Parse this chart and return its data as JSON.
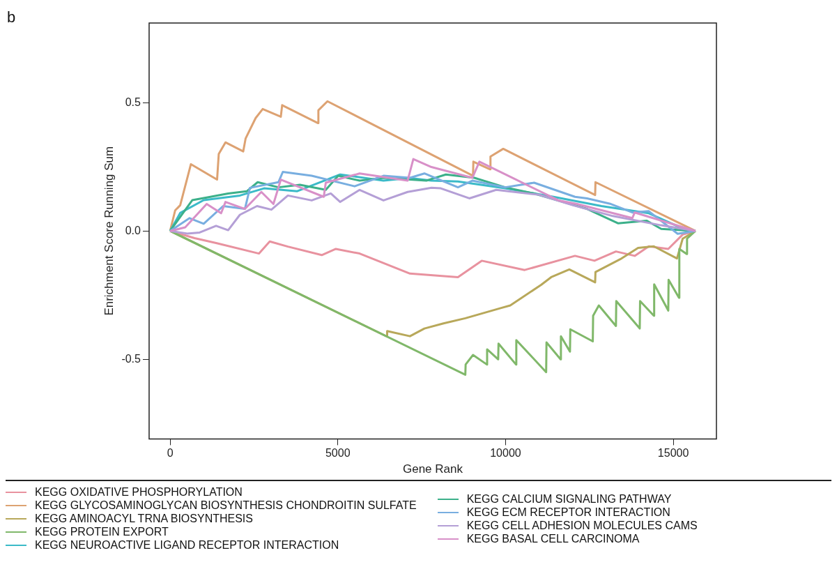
{
  "chart_data": {
    "type": "line",
    "xlabel": "Gene Rank",
    "ylabel": "Enrichment Score Running Sum",
    "annotations": [
      "b"
    ],
    "xlim": [
      -626,
      16286
    ],
    "ylim": [
      -0.81,
      0.81
    ],
    "xticks": [
      0,
      5000,
      10000,
      15000
    ],
    "yticks": [
      -0.5,
      {
        "value": 0,
        "label": "0.0"
      },
      0.5
    ],
    "grid": false,
    "legend": "bottom",
    "marker": "none",
    "line_style": "solid",
    "series": [
      {
        "name": "KEGG OXIDATIVE PHOSPHORYLATION",
        "color": "#e8929f",
        "x": [
          0,
          730,
          1370,
          2650,
          2970,
          3510,
          4520,
          4940,
          5650,
          7150,
          8580,
          9290,
          10570,
          12070,
          12650,
          13290,
          13850,
          14270,
          14850,
          15280,
          15660
        ],
        "values": [
          0,
          -0.028,
          -0.047,
          -0.088,
          -0.041,
          -0.061,
          -0.094,
          -0.07,
          -0.088,
          -0.166,
          -0.18,
          -0.116,
          -0.152,
          -0.097,
          -0.116,
          -0.08,
          -0.097,
          -0.06,
          -0.07,
          -0.014,
          0
        ]
      },
      {
        "name": "KEGG GLYCOSAMINOGLYCAN BIOSYNTHESIS CHONDROITIN SULFATE",
        "color": "#dda272",
        "x": [
          0,
          150,
          300,
          620,
          1400,
          1450,
          1650,
          2180,
          2250,
          2550,
          2760,
          3300,
          3340,
          4410,
          4420,
          4690,
          9030,
          9040,
          9540,
          9550,
          9930,
          12670,
          12680,
          15660
        ],
        "values": [
          0,
          0.08,
          0.1,
          0.26,
          0.2,
          0.3,
          0.345,
          0.31,
          0.36,
          0.44,
          0.475,
          0.445,
          0.49,
          0.42,
          0.47,
          0.505,
          0.215,
          0.27,
          0.24,
          0.29,
          0.32,
          0.14,
          0.19,
          0
        ]
      },
      {
        "name": "KEGG AMINOACYL TRNA BIOSYNTHESIS",
        "color": "#b8a85a",
        "x": [
          0,
          6460,
          6470,
          7150,
          7580,
          8150,
          8800,
          9870,
          10140,
          11060,
          11360,
          11900,
          12670,
          12680,
          13420,
          13950,
          14420,
          15110,
          15280,
          15660
        ],
        "values": [
          0,
          -0.411,
          -0.39,
          -0.41,
          -0.38,
          -0.36,
          -0.34,
          -0.3,
          -0.29,
          -0.21,
          -0.18,
          -0.15,
          -0.2,
          -0.16,
          -0.11,
          -0.066,
          -0.06,
          -0.107,
          -0.03,
          0
        ]
      },
      {
        "name": "KEGG PROTEIN EXPORT",
        "color": "#80b86a",
        "x": [
          0,
          8800,
          8810,
          9030,
          9440,
          9450,
          9780,
          9790,
          10310,
          10320,
          11210,
          11220,
          11640,
          11650,
          11920,
          11930,
          12600,
          12610,
          12780,
          13290,
          13300,
          14000,
          14010,
          14420,
          14430,
          14850,
          14860,
          15170,
          15180,
          15400,
          15410,
          15660
        ],
        "values": [
          0,
          -0.56,
          -0.52,
          -0.483,
          -0.52,
          -0.461,
          -0.5,
          -0.439,
          -0.52,
          -0.425,
          -0.55,
          -0.434,
          -0.5,
          -0.41,
          -0.47,
          -0.383,
          -0.43,
          -0.33,
          -0.29,
          -0.37,
          -0.273,
          -0.38,
          -0.273,
          -0.33,
          -0.208,
          -0.31,
          -0.19,
          -0.26,
          -0.07,
          -0.09,
          -0.03,
          0
        ]
      },
      {
        "name": "KEGG NEUROACTIVE LIGAND RECEPTOR INTERACTION",
        "color": "#3bbac8",
        "x": [
          0,
          300,
          1000,
          2080,
          2800,
          3790,
          5070,
          6360,
          7150,
          7790,
          8580,
          9990,
          11430,
          12860,
          14270,
          15210,
          15660
        ],
        "values": [
          0,
          0.07,
          0.12,
          0.138,
          0.166,
          0.155,
          0.22,
          0.196,
          0.206,
          0.196,
          0.193,
          0.166,
          0.133,
          0.097,
          0.069,
          0.014,
          0
        ]
      },
      {
        "name": "KEGG CALCIUM SIGNALING PATHWAY",
        "color": "#3cb08a",
        "x": [
          0,
          660,
          1090,
          1730,
          2290,
          2610,
          3230,
          3870,
          4640,
          5010,
          5650,
          6360,
          7640,
          8220,
          9070,
          9990,
          10850,
          12430,
          13350,
          14210,
          14640,
          15660
        ],
        "values": [
          0,
          0.12,
          0.13,
          0.146,
          0.155,
          0.19,
          0.17,
          0.18,
          0.16,
          0.215,
          0.196,
          0.207,
          0.196,
          0.22,
          0.207,
          0.17,
          0.146,
          0.086,
          0.03,
          0.04,
          0.008,
          0
        ]
      },
      {
        "name": "KEGG ECM RECEPTOR INTERACTION",
        "color": "#78aee0",
        "x": [
          0,
          580,
          1000,
          1580,
          2230,
          2380,
          3230,
          3360,
          4220,
          5500,
          6360,
          7150,
          7580,
          8580,
          9010,
          9990,
          10850,
          12070,
          12430,
          13140,
          13780,
          14270,
          15130,
          15660
        ],
        "values": [
          0,
          0.05,
          0.028,
          0.097,
          0.086,
          0.168,
          0.19,
          0.23,
          0.215,
          0.174,
          0.215,
          0.207,
          0.224,
          0.17,
          0.196,
          0.17,
          0.188,
          0.133,
          0.127,
          0.105,
          0.072,
          0.077,
          -0.011,
          0
        ]
      },
      {
        "name": "KEGG CELL ADHESION MOLECULES CAMS",
        "color": "#b49fd6",
        "x": [
          0,
          510,
          880,
          1370,
          1730,
          2080,
          2590,
          3020,
          3510,
          4220,
          4790,
          5070,
          5650,
          6360,
          7080,
          7790,
          8070,
          8920,
          9720,
          11000,
          12010,
          13200,
          14640,
          15660
        ],
        "values": [
          0,
          -0.01,
          -0.006,
          0.02,
          0.003,
          0.063,
          0.097,
          0.083,
          0.138,
          0.119,
          0.146,
          0.113,
          0.16,
          0.119,
          0.152,
          0.168,
          0.166,
          0.127,
          0.16,
          0.141,
          0.1,
          0.058,
          0.022,
          0
        ]
      },
      {
        "name": "KEGG BASAL CELL CARCINOMA",
        "color": "#d890c8",
        "x": [
          0,
          450,
          1090,
          1520,
          1650,
          2230,
          2720,
          3080,
          3300,
          4580,
          4640,
          5650,
          7080,
          7250,
          7790,
          9010,
          9220,
          11580,
          12130,
          13780,
          13850,
          15660
        ],
        "values": [
          0,
          0.014,
          0.105,
          0.069,
          0.113,
          0.086,
          0.152,
          0.105,
          0.2,
          0.133,
          0.188,
          0.224,
          0.196,
          0.28,
          0.249,
          0.207,
          0.27,
          0.119,
          0.105,
          0.05,
          0.072,
          0
        ]
      }
    ]
  }
}
